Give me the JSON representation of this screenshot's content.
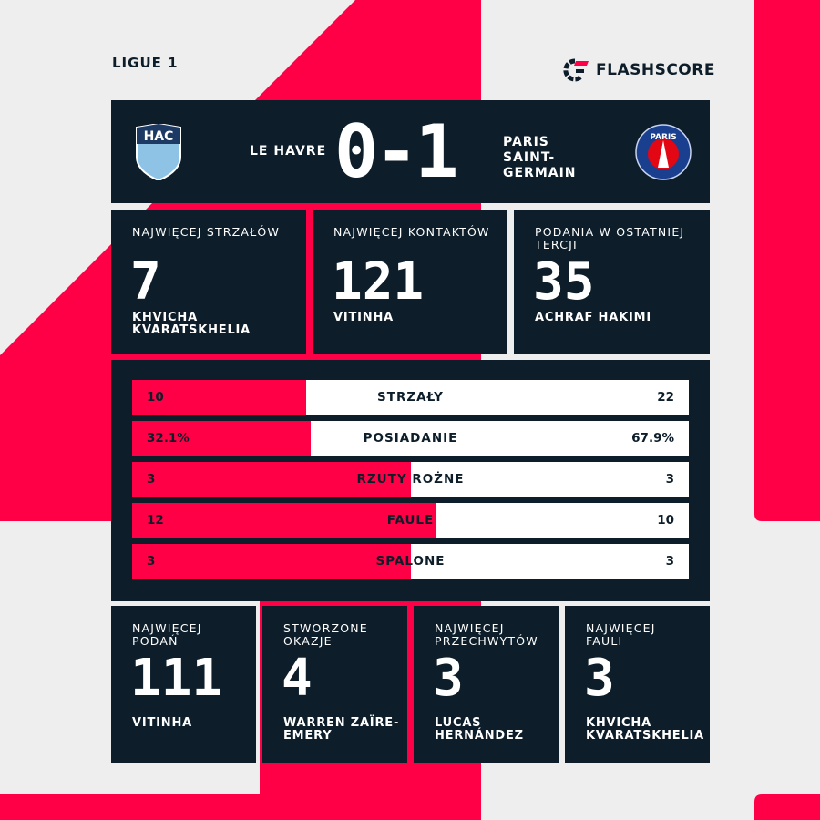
{
  "league": "LIGUE 1",
  "brand": {
    "name": "FLASHSCORE",
    "accent": "#ff0046",
    "panel": "#0d1e2a"
  },
  "match": {
    "home": "LE HAVRE",
    "away": "PARIS SAINT-GERMAIN",
    "score": "0-1",
    "home_badge": "HAC",
    "away_badge": "PARIS"
  },
  "top_stats": [
    {
      "label": "NAJWIĘCEJ STRZAŁÓW",
      "value": "7",
      "player": "KHVICHA KVARATSKHELIA"
    },
    {
      "label": "NAJWIĘCEJ KONTAKTÓW",
      "value": "121",
      "player": "VITINHA"
    },
    {
      "label": "PODANIA W OSTATNIEJ TERCJI",
      "value": "35",
      "player": "ACHRAF HAKIMI"
    }
  ],
  "bars": [
    {
      "label": "STRZAŁY",
      "home": "10",
      "away": "22",
      "home_share": 0.3125
    },
    {
      "label": "POSIADANIE",
      "home": "32.1%",
      "away": "67.9%",
      "home_share": 0.321
    },
    {
      "label": "RZUTY ROŻNE",
      "home": "3",
      "away": "3",
      "home_share": 0.5
    },
    {
      "label": "FAULE",
      "home": "12",
      "away": "10",
      "home_share": 0.545
    },
    {
      "label": "SPALONE",
      "home": "3",
      "away": "3",
      "home_share": 0.5
    }
  ],
  "bottom_stats": [
    {
      "label": "NAJWIĘCEJ PODAŃ",
      "value": "111",
      "player": "VITINHA"
    },
    {
      "label": "STWORZONE OKAZJE",
      "value": "4",
      "player": "WARREN ZAÏRE-EMERY"
    },
    {
      "label": "NAJWIĘCEJ PRZECHWYTÓW",
      "value": "3",
      "player": "LUCAS HERNÁNDEZ"
    },
    {
      "label": "NAJWIĘCEJ FAULI",
      "value": "3",
      "player": "KHVICHA KVARATSKHELIA"
    }
  ]
}
